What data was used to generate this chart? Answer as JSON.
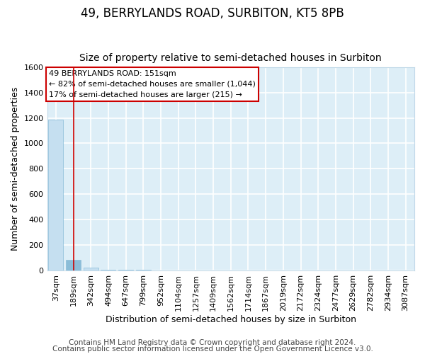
{
  "title1": "49, BERRYLANDS ROAD, SURBITON, KT5 8PB",
  "title2": "Size of property relative to semi-detached houses in Surbiton",
  "xlabel": "Distribution of semi-detached houses by size in Surbiton",
  "ylabel": "Number of semi-detached properties",
  "bar_labels": [
    "37sqm",
    "189sqm",
    "342sqm",
    "494sqm",
    "647sqm",
    "799sqm",
    "952sqm",
    "1104sqm",
    "1257sqm",
    "1409sqm",
    "1562sqm",
    "1714sqm",
    "1867sqm",
    "2019sqm",
    "2172sqm",
    "2324sqm",
    "2477sqm",
    "2629sqm",
    "2782sqm",
    "2934sqm",
    "3087sqm"
  ],
  "bar_values": [
    1185,
    85,
    20,
    5,
    3,
    2,
    1,
    1,
    0,
    0,
    0,
    0,
    0,
    0,
    0,
    0,
    0,
    0,
    0,
    0,
    0
  ],
  "bar_color": "#c5dff0",
  "bar_edge_color": "#8bbdd8",
  "highlight_bar_index": 1,
  "highlight_bar_color": "#8bbdd8",
  "property_line_x": 1.5,
  "property_line_color": "#cc0000",
  "ylim": [
    0,
    1600
  ],
  "yticks": [
    0,
    200,
    400,
    600,
    800,
    1000,
    1200,
    1400,
    1600
  ],
  "annotation_title": "49 BERRYLANDS ROAD: 151sqm",
  "annotation_line1": "← 82% of semi-detached houses are smaller (1,044)",
  "annotation_line2": "17% of semi-detached houses are larger (215) →",
  "annotation_box_color": "#ffffff",
  "annotation_box_edge": "#cc0000",
  "footer1": "Contains HM Land Registry data © Crown copyright and database right 2024.",
  "footer2": "Contains public sector information licensed under the Open Government Licence v3.0.",
  "fig_bg_color": "#ffffff",
  "plot_bg_color": "#ddeef7",
  "grid_color": "#ffffff",
  "title1_fontsize": 12,
  "title2_fontsize": 10,
  "tick_fontsize": 8,
  "ylabel_fontsize": 9,
  "xlabel_fontsize": 9,
  "footer_fontsize": 7.5
}
